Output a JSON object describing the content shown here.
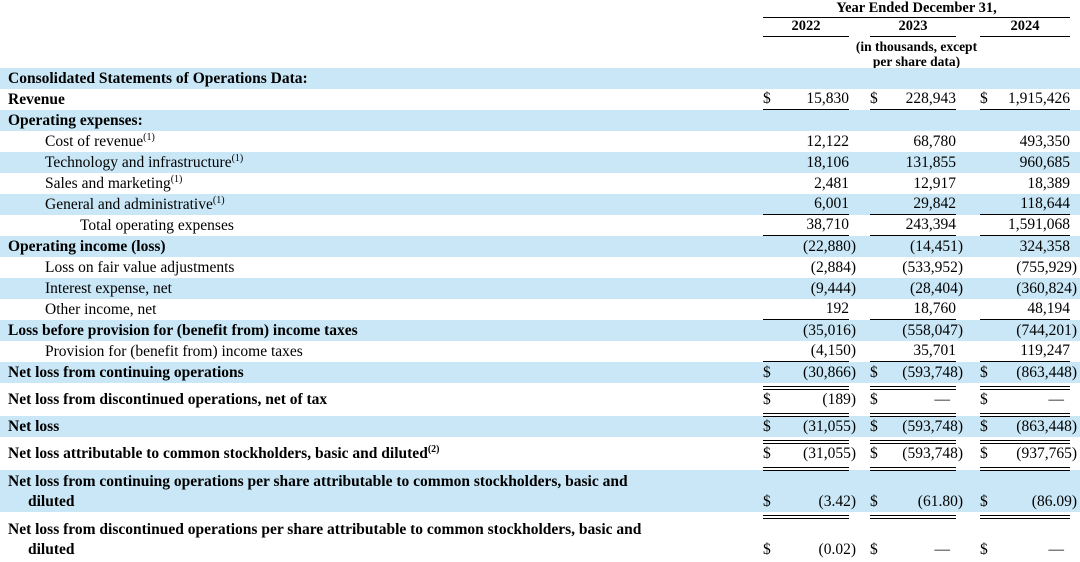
{
  "table": {
    "currency_symbol": "$",
    "colors": {
      "row_shade": "#c9e7f6",
      "text": "#000000",
      "rule": "#000000"
    },
    "header": {
      "period_label": "Year Ended December 31,",
      "years": [
        "2022",
        "2023",
        "2024"
      ],
      "units_note_line1": "(in thousands, except",
      "units_note_line2": "per share data)"
    },
    "rows": [
      {
        "label": "Consolidated Statements of Operations Data:",
        "bold": true,
        "shaded": true,
        "indent": 0,
        "dollar": false,
        "underline": "none",
        "values": [
          "",
          "",
          ""
        ]
      },
      {
        "label": "Revenue",
        "bold": true,
        "shaded": false,
        "indent": 0,
        "dollar": true,
        "underline": "single",
        "values": [
          "15,830",
          "228,943",
          "1,915,426"
        ]
      },
      {
        "label": "Operating expenses:",
        "bold": true,
        "shaded": true,
        "indent": 0,
        "dollar": false,
        "underline": "none",
        "values": [
          "",
          "",
          ""
        ]
      },
      {
        "label": "Cost of revenue",
        "sup": "(1)",
        "bold": false,
        "shaded": false,
        "indent": 1,
        "dollar": false,
        "underline": "none",
        "values": [
          "12,122",
          "68,780",
          "493,350"
        ]
      },
      {
        "label": "Technology and infrastructure",
        "sup": "(1)",
        "bold": false,
        "shaded": true,
        "indent": 1,
        "dollar": false,
        "underline": "none",
        "values": [
          "18,106",
          "131,855",
          "960,685"
        ]
      },
      {
        "label": "Sales and marketing",
        "sup": "(1)",
        "bold": false,
        "shaded": false,
        "indent": 1,
        "dollar": false,
        "underline": "none",
        "values": [
          "2,481",
          "12,917",
          "18,389"
        ]
      },
      {
        "label": "General and administrative",
        "sup": "(1)",
        "bold": false,
        "shaded": true,
        "indent": 1,
        "dollar": false,
        "underline": "single",
        "values": [
          "6,001",
          "29,842",
          "118,644"
        ]
      },
      {
        "label": "Total operating expenses",
        "bold": false,
        "shaded": false,
        "indent": 2,
        "dollar": false,
        "underline": "single",
        "values": [
          "38,710",
          "243,394",
          "1,591,068"
        ]
      },
      {
        "label": "Operating income (loss)",
        "bold": true,
        "shaded": true,
        "indent": 0,
        "dollar": false,
        "underline": "none",
        "values": [
          "(22,880)",
          "(14,451)",
          "324,358"
        ]
      },
      {
        "label": "Loss on fair value adjustments",
        "bold": false,
        "shaded": false,
        "indent": 1,
        "dollar": false,
        "underline": "none",
        "values": [
          "(2,884)",
          "(533,952)",
          "(755,929)"
        ]
      },
      {
        "label": "Interest expense, net",
        "bold": false,
        "shaded": true,
        "indent": 1,
        "dollar": false,
        "underline": "none",
        "values": [
          "(9,444)",
          "(28,404)",
          "(360,824)"
        ]
      },
      {
        "label": "Other income, net",
        "bold": false,
        "shaded": false,
        "indent": 1,
        "dollar": false,
        "underline": "single",
        "values": [
          "192",
          "18,760",
          "48,194"
        ]
      },
      {
        "label": "Loss before provision for (benefit from) income taxes",
        "bold": true,
        "shaded": true,
        "indent": 0,
        "dollar": false,
        "underline": "none",
        "values": [
          "(35,016)",
          "(558,047)",
          "(744,201)"
        ]
      },
      {
        "label": "Provision for (benefit from) income taxes",
        "bold": false,
        "shaded": false,
        "indent": 1,
        "dollar": false,
        "underline": "single",
        "values": [
          "(4,150)",
          "35,701",
          "119,247"
        ]
      },
      {
        "label": "Net loss from continuing operations",
        "bold": true,
        "shaded": true,
        "indent": 0,
        "dollar": true,
        "underline": "double",
        "values": [
          "(30,866)",
          "(593,748)",
          "(863,448)"
        ]
      },
      {
        "label": "Net loss from discontinued operations, net of tax",
        "bold": true,
        "shaded": false,
        "indent": 0,
        "dollar": true,
        "underline": "double",
        "values": [
          "(189)",
          "—",
          "—"
        ]
      },
      {
        "label": "Net loss",
        "bold": true,
        "shaded": true,
        "indent": 0,
        "dollar": true,
        "underline": "double",
        "values": [
          "(31,055)",
          "(593,748)",
          "(863,448)"
        ]
      },
      {
        "label": "Net loss attributable to common stockholders, basic and diluted",
        "sup": "(2)",
        "bold": true,
        "shaded": false,
        "indent": 0,
        "dollar": true,
        "underline": "double",
        "values": [
          "(31,055)",
          "(593,748)",
          "(937,765)"
        ]
      },
      {
        "label": "Net loss from continuing operations per share attributable to common stockholders, basic and",
        "label2": "diluted",
        "bold": true,
        "shaded": true,
        "indent": 0,
        "dollar": true,
        "underline": "double",
        "values": [
          "(3.42)",
          "(61.80)",
          "(86.09)"
        ]
      },
      {
        "label": "Net loss from discontinued operations per share attributable to common stockholders, basic and",
        "label2": "diluted",
        "bold": true,
        "shaded": false,
        "indent": 0,
        "dollar": true,
        "underline": "double",
        "values": [
          "(0.02)",
          "—",
          "—"
        ]
      }
    ]
  }
}
